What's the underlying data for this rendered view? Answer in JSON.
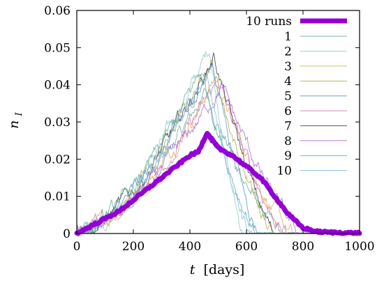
{
  "chart_data": {
    "type": "line",
    "title": "",
    "xlabel": "t [days]",
    "xlabel_var": "t",
    "xlabel_unit": "[days]",
    "ylabel": "n_I",
    "ylabel_var": "n",
    "ylabel_sub": "I",
    "xlim": [
      0,
      1000
    ],
    "ylim": [
      0,
      0.06
    ],
    "xticks": [
      0,
      200,
      400,
      600,
      800,
      1000
    ],
    "yticks": [
      0,
      0.01,
      0.02,
      0.03,
      0.04,
      0.05,
      0.06
    ],
    "xtick_labels": [
      "0",
      "200",
      "400",
      "600",
      "800",
      "1000"
    ],
    "ytick_labels": [
      "0",
      "0.01",
      "0.02",
      "0.03",
      "0.04",
      "0.05",
      "0.06"
    ],
    "grid": false,
    "legend_position": "top-right",
    "average": {
      "name": "10 runs",
      "color": "#9400d3",
      "x": [
        0,
        50,
        100,
        150,
        200,
        250,
        300,
        350,
        400,
        430,
        460,
        480,
        500,
        550,
        600,
        650,
        700,
        750,
        800,
        850,
        900,
        950,
        1000
      ],
      "y": [
        0,
        0.002,
        0.004,
        0.006,
        0.009,
        0.012,
        0.015,
        0.018,
        0.021,
        0.022,
        0.027,
        0.025,
        0.023,
        0.021,
        0.018,
        0.015,
        0.01,
        0.005,
        0.0015,
        0.0005,
        0.0003,
        0.0002,
        0.0001
      ]
    },
    "series": [
      {
        "name": "1",
        "color": "#7fb6a8",
        "peak_x": 455,
        "peak_y": 0.038,
        "end_x": 720
      },
      {
        "name": "2",
        "color": "#9fd0c8",
        "peak_x": 470,
        "peak_y": 0.05,
        "end_x": 590
      },
      {
        "name": "3",
        "color": "#e7b26b",
        "peak_x": 490,
        "peak_y": 0.042,
        "end_x": 760
      },
      {
        "name": "4",
        "color": "#b9b36a",
        "peak_x": 475,
        "peak_y": 0.047,
        "end_x": 690
      },
      {
        "name": "5",
        "color": "#6fa3c4",
        "peak_x": 480,
        "peak_y": 0.046,
        "end_x": 650
      },
      {
        "name": "6",
        "color": "#d18bb8",
        "peak_x": 500,
        "peak_y": 0.041,
        "end_x": 740
      },
      {
        "name": "7",
        "color": "#555555",
        "peak_x": 485,
        "peak_y": 0.048,
        "end_x": 700
      },
      {
        "name": "8",
        "color": "#b87ad6",
        "peak_x": 510,
        "peak_y": 0.04,
        "end_x": 790
      },
      {
        "name": "9",
        "color": "#6fb8b0",
        "peak_x": 440,
        "peak_y": 0.044,
        "end_x": 640
      },
      {
        "name": "10",
        "color": "#8fc3e8",
        "peak_x": 460,
        "peak_y": 0.043,
        "end_x": 620
      }
    ]
  }
}
